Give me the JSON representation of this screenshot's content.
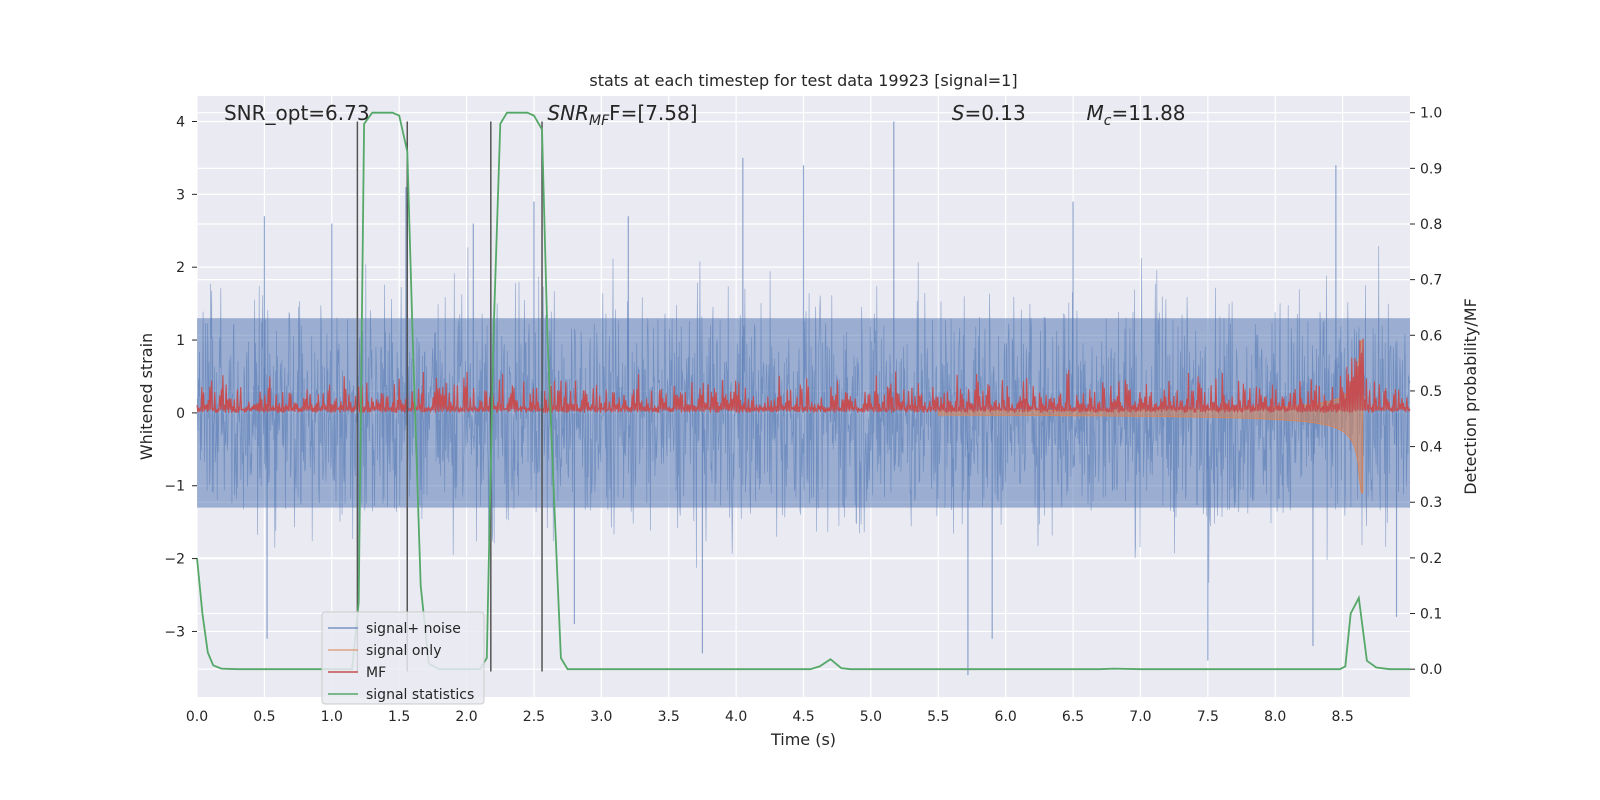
{
  "chart_data": {
    "type": "line",
    "title": "stats at each timestep for test data 19923 [signal=1]",
    "xlabel": "Time (s)",
    "ylabel_left": "Whitened strain",
    "ylabel_right": "Detection probability/MF",
    "xlim": [
      0.0,
      9.0
    ],
    "ylim_left": [
      -3.9,
      4.35
    ],
    "ylim_right": [
      -0.05,
      1.03
    ],
    "x_ticks": [
      0.0,
      0.5,
      1.0,
      1.5,
      2.0,
      2.5,
      3.0,
      3.5,
      4.0,
      4.5,
      5.0,
      5.5,
      6.0,
      6.5,
      7.0,
      7.5,
      8.0,
      8.5
    ],
    "x_tick_labels": [
      "0.0",
      "0.5",
      "1.0",
      "1.5",
      "2.0",
      "2.5",
      "3.0",
      "3.5",
      "4.0",
      "4.5",
      "5.0",
      "5.5",
      "6.0",
      "6.5",
      "7.0",
      "7.5",
      "8.0",
      "8.5"
    ],
    "y_left_ticks": [
      4,
      3,
      2,
      1,
      0,
      -1,
      -2,
      -3
    ],
    "y_left_tick_labels": [
      "4",
      "3",
      "2",
      "1",
      "0",
      "−1",
      "−2",
      "−3"
    ],
    "y_right_ticks": [
      1.0,
      0.9,
      0.8,
      0.7,
      0.6,
      0.5,
      0.4,
      0.3,
      0.2,
      0.1,
      0.0
    ],
    "y_right_tick_labels": [
      "1.0",
      "0.9",
      "0.8",
      "0.7",
      "0.6",
      "0.5",
      "0.4",
      "0.3",
      "0.2",
      "0.1",
      "0.0"
    ],
    "grid": true,
    "legend_position": "lower-left",
    "annotations": [
      {
        "text": "SNR_opt=6.73",
        "x": 0.2
      },
      {
        "text_main": "SNR",
        "text_sub": "MF",
        "text_tail": "F=[7.58]",
        "x": 2.6
      },
      {
        "text_main": "S",
        "text_tail": "=0.13",
        "x": 5.6
      },
      {
        "text_main": "M",
        "text_sub": "c",
        "text_tail": "=11.88",
        "x": 6.6
      }
    ],
    "markers": [
      {
        "x": 1.19,
        "y_from": -3.55,
        "y_to": 4.0
      },
      {
        "x": 1.56,
        "y_from": -3.55,
        "y_to": 4.0
      },
      {
        "x": 2.18,
        "y_from": -3.55,
        "y_to": 4.0
      },
      {
        "x": 2.56,
        "y_from": -3.55,
        "y_to": 4.0
      }
    ],
    "series": [
      {
        "name": "signal+ noise",
        "color": "#4c72b0",
        "axis": "left",
        "kind": "noise",
        "band": [
          -1.3,
          1.3
        ],
        "spikes": [
          {
            "x": 0.5,
            "y": 2.7
          },
          {
            "x": 0.52,
            "y": -3.1
          },
          {
            "x": 1.0,
            "y": 2.6
          },
          {
            "x": 1.2,
            "y": -2.6
          },
          {
            "x": 1.55,
            "y": 3.1
          },
          {
            "x": 2.05,
            "y": 2.6
          },
          {
            "x": 2.5,
            "y": 2.9
          },
          {
            "x": 2.8,
            "y": -2.9
          },
          {
            "x": 3.75,
            "y": -3.3
          },
          {
            "x": 4.05,
            "y": 3.5
          },
          {
            "x": 4.5,
            "y": 3.4
          },
          {
            "x": 5.17,
            "y": 4.0
          },
          {
            "x": 5.72,
            "y": -3.6
          },
          {
            "x": 5.9,
            "y": -3.1
          },
          {
            "x": 7.5,
            "y": -3.4
          },
          {
            "x": 8.28,
            "y": -3.2
          },
          {
            "x": 8.45,
            "y": 3.4
          },
          {
            "x": 8.9,
            "y": -2.8
          },
          {
            "x": 6.5,
            "y": 2.9
          },
          {
            "x": 3.2,
            "y": 2.7
          }
        ]
      },
      {
        "name": "signal only",
        "color": "#dd8452",
        "axis": "left",
        "kind": "chirp",
        "t_start": 5.5,
        "t_merge": 8.65,
        "amp_start": 0.03,
        "amp_peak": 1.1
      },
      {
        "name": "MF",
        "color": "#c44e52",
        "axis": "left",
        "kind": "mf",
        "base": 0.05,
        "band": [
          0.0,
          0.45
        ],
        "peak": {
          "x": 8.63,
          "y": 0.98
        }
      },
      {
        "name": "signal statistics",
        "color": "#55a868",
        "axis": "right",
        "x": [
          0.0,
          0.04,
          0.08,
          0.12,
          0.18,
          0.3,
          0.6,
          1.0,
          1.15,
          1.2,
          1.24,
          1.3,
          1.35,
          1.45,
          1.5,
          1.56,
          1.6,
          1.66,
          1.72,
          1.8,
          2.0,
          2.1,
          2.15,
          2.2,
          2.25,
          2.3,
          2.35,
          2.45,
          2.5,
          2.56,
          2.6,
          2.65,
          2.7,
          2.75,
          2.85,
          3.0,
          4.0,
          4.55,
          4.62,
          4.7,
          4.78,
          4.85,
          5.0,
          6.0,
          6.7,
          6.8,
          7.0,
          8.0,
          8.48,
          8.52,
          8.56,
          8.62,
          8.68,
          8.75,
          8.85,
          9.0
        ],
        "y": [
          0.2,
          0.1,
          0.03,
          0.007,
          0.001,
          0.0,
          0.0,
          0.0,
          0.0,
          0.12,
          0.98,
          1.0,
          1.0,
          1.0,
          0.995,
          0.93,
          0.6,
          0.15,
          0.01,
          0.0,
          0.0,
          0.0,
          0.02,
          0.6,
          0.98,
          1.0,
          1.0,
          1.0,
          0.995,
          0.97,
          0.6,
          0.3,
          0.02,
          0.0,
          0.0,
          0.0,
          0.0,
          0.0,
          0.005,
          0.018,
          0.002,
          0.0,
          0.0,
          0.0,
          0.0,
          0.001,
          0.0,
          0.0,
          0.0,
          0.005,
          0.1,
          0.128,
          0.015,
          0.003,
          0.0,
          0.0
        ]
      }
    ]
  }
}
